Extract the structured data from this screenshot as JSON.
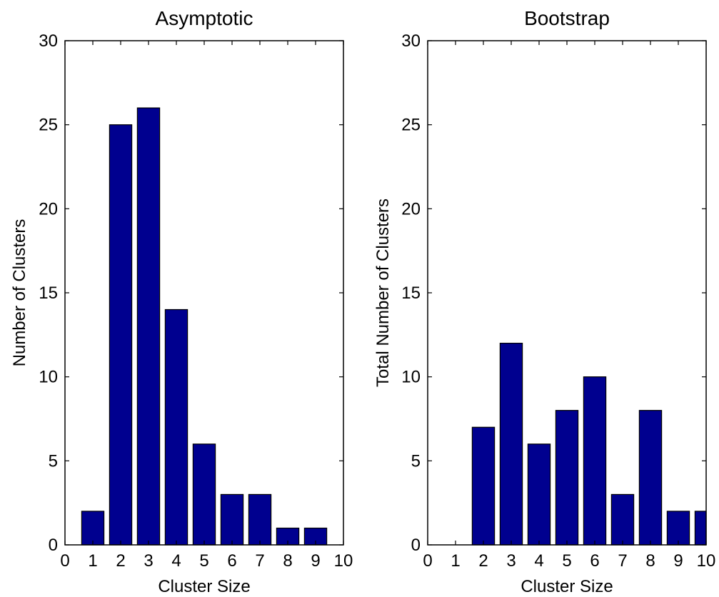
{
  "chart_data": [
    {
      "type": "bar",
      "title": "Asymptotic",
      "xlabel": "Cluster Size",
      "ylabel": "Number of Clusters",
      "xlim": [
        0,
        10
      ],
      "ylim": [
        0,
        30
      ],
      "xticks": [
        0,
        1,
        2,
        3,
        4,
        5,
        6,
        7,
        8,
        9,
        10
      ],
      "yticks": [
        0,
        5,
        10,
        15,
        20,
        25,
        30
      ],
      "x": [
        1,
        2,
        3,
        4,
        5,
        6,
        7,
        8,
        9
      ],
      "values": [
        2,
        25,
        26,
        14,
        6,
        3,
        3,
        1,
        1
      ],
      "bar_color": "#00008f",
      "grid": false
    },
    {
      "type": "bar",
      "title": "Bootstrap",
      "xlabel": "Cluster Size",
      "ylabel": "Total Number of Clusters",
      "xlim": [
        0,
        10
      ],
      "ylim": [
        0,
        30
      ],
      "xticks": [
        0,
        1,
        2,
        3,
        4,
        5,
        6,
        7,
        8,
        9,
        10
      ],
      "yticks": [
        0,
        5,
        10,
        15,
        20,
        25,
        30
      ],
      "x": [
        1,
        2,
        3,
        4,
        5,
        6,
        7,
        8,
        9,
        10
      ],
      "values": [
        0,
        7,
        12,
        6,
        8,
        10,
        3,
        8,
        2,
        2
      ],
      "bar_color": "#00008f",
      "grid": false
    }
  ]
}
